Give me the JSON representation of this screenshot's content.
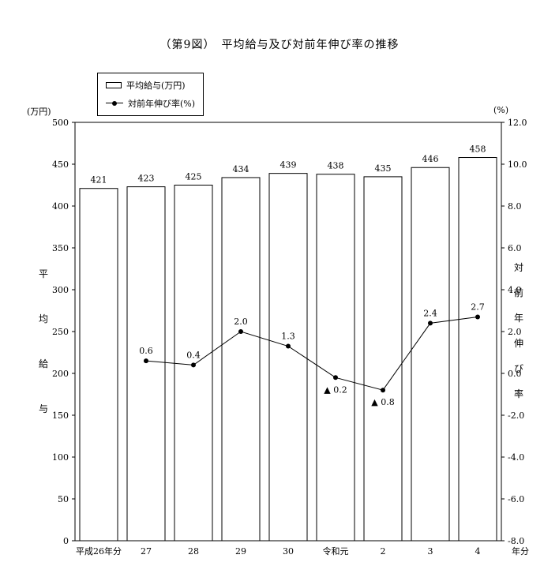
{
  "page": {
    "title": "（第9図）　平均給与及び対前年伸び率の推移"
  },
  "legend": {
    "bar_label": "平均給与(万円)",
    "line_label": "対前年伸び率(%)"
  },
  "axes": {
    "left_unit": "(万円)",
    "right_unit": "(%)",
    "left_title": "平均給与",
    "right_title": "対前年伸び率",
    "x_suffix": "年分"
  },
  "chart_data": {
    "type": "bar+line",
    "title": "（第9図）　平均給与及び対前年伸び率の推移",
    "categories": [
      "平成26年分",
      "27",
      "28",
      "29",
      "30",
      "令和元",
      "2",
      "3",
      "4"
    ],
    "series": [
      {
        "name": "平均給与(万円)",
        "type": "bar",
        "axis": "left",
        "values": [
          421,
          423,
          425,
          434,
          439,
          438,
          435,
          446,
          458
        ]
      },
      {
        "name": "対前年伸び率(%)",
        "type": "line",
        "axis": "right",
        "values": [
          null,
          0.6,
          0.4,
          2.0,
          1.3,
          -0.2,
          -0.8,
          2.4,
          2.7
        ]
      }
    ],
    "left_axis": {
      "min": 0,
      "max": 500,
      "step": 50,
      "unit": "万円"
    },
    "right_axis": {
      "min": -8,
      "max": 12,
      "step": 2,
      "unit": "%"
    },
    "negative_marker": "▲",
    "grid": false,
    "legend_position": "top-left",
    "colors": {
      "bar_fill": "#ffffff",
      "bar_stroke": "#000000",
      "line": "#000000",
      "text": "#000000"
    }
  }
}
